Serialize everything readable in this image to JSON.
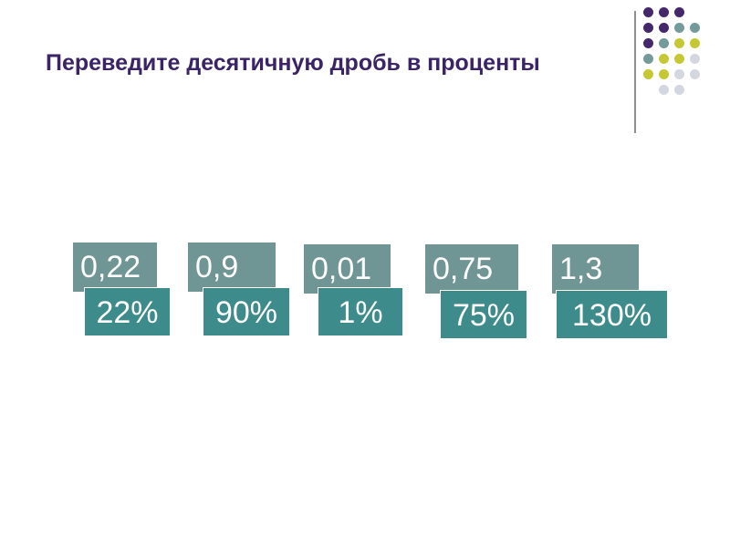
{
  "slide": {
    "title": "Переведите десятичную дробь в проценты"
  },
  "decoration": {
    "colors": {
      "purple": "#45286b",
      "teal": "#749a9a",
      "yellow": "#c5c832",
      "gray": "#d4d6e0",
      "line": "#8f8f8f"
    },
    "dot_grid": [
      [
        "purple",
        "purple",
        "purple",
        null
      ],
      [
        "purple",
        "purple",
        "teal",
        "teal"
      ],
      [
        "purple",
        "teal",
        "yellow",
        "yellow"
      ],
      [
        "teal",
        "yellow",
        "yellow",
        "gray"
      ],
      [
        "yellow",
        "yellow",
        "gray",
        "gray"
      ],
      [
        null,
        "gray",
        "gray",
        null
      ]
    ]
  },
  "items": [
    {
      "decimal": "0,22",
      "percent": "22%"
    },
    {
      "decimal": "0,9",
      "percent": "90%"
    },
    {
      "decimal": "0,01",
      "percent": "1%"
    },
    {
      "decimal": "0,75",
      "percent": "75%"
    },
    {
      "decimal": "1,3",
      "percent": "130%"
    }
  ]
}
